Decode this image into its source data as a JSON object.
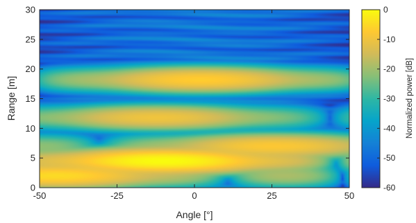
{
  "chart_data": {
    "type": "heatmap",
    "title": "",
    "xlabel": "Angle [°]",
    "ylabel": "Range [m]",
    "xlim": [
      -50,
      50
    ],
    "ylim": [
      0,
      30
    ],
    "xticks": [
      -50,
      -25,
      0,
      25,
      50
    ],
    "xtick_labels": [
      "-50",
      "-25",
      "0",
      "25",
      "50"
    ],
    "yticks": [
      0,
      5,
      10,
      15,
      20,
      25,
      30
    ],
    "ytick_labels": [
      "0",
      "5",
      "10",
      "15",
      "20",
      "25",
      "30"
    ],
    "colorbar": {
      "label": "Normalized power [dB]",
      "range": [
        -60,
        0
      ],
      "ticks": [
        0,
        -10,
        -20,
        -30,
        -40,
        -50,
        -60
      ],
      "tick_labels": [
        "0",
        "-10",
        "-20",
        "-30",
        "-40",
        "-50",
        "-60"
      ],
      "colormap": "parula",
      "colors": [
        "#352a87",
        "#0f5cdd",
        "#1481d6",
        "#06a4ca",
        "#2eb7a4",
        "#87bf77",
        "#d1bb59",
        "#fec832",
        "#f9fb0e"
      ]
    },
    "peaks": [
      {
        "angle": -45,
        "range": 2.0,
        "power_db": -5
      },
      {
        "angle": -10,
        "range": 4.5,
        "power_db": 0
      },
      {
        "angle": 25,
        "range": 7.0,
        "power_db": -8
      },
      {
        "angle": -12,
        "range": 11.8,
        "power_db": -10
      },
      {
        "angle": 2,
        "range": 18.2,
        "power_db": -7
      }
    ],
    "background_power_db": -48,
    "grid": false
  }
}
